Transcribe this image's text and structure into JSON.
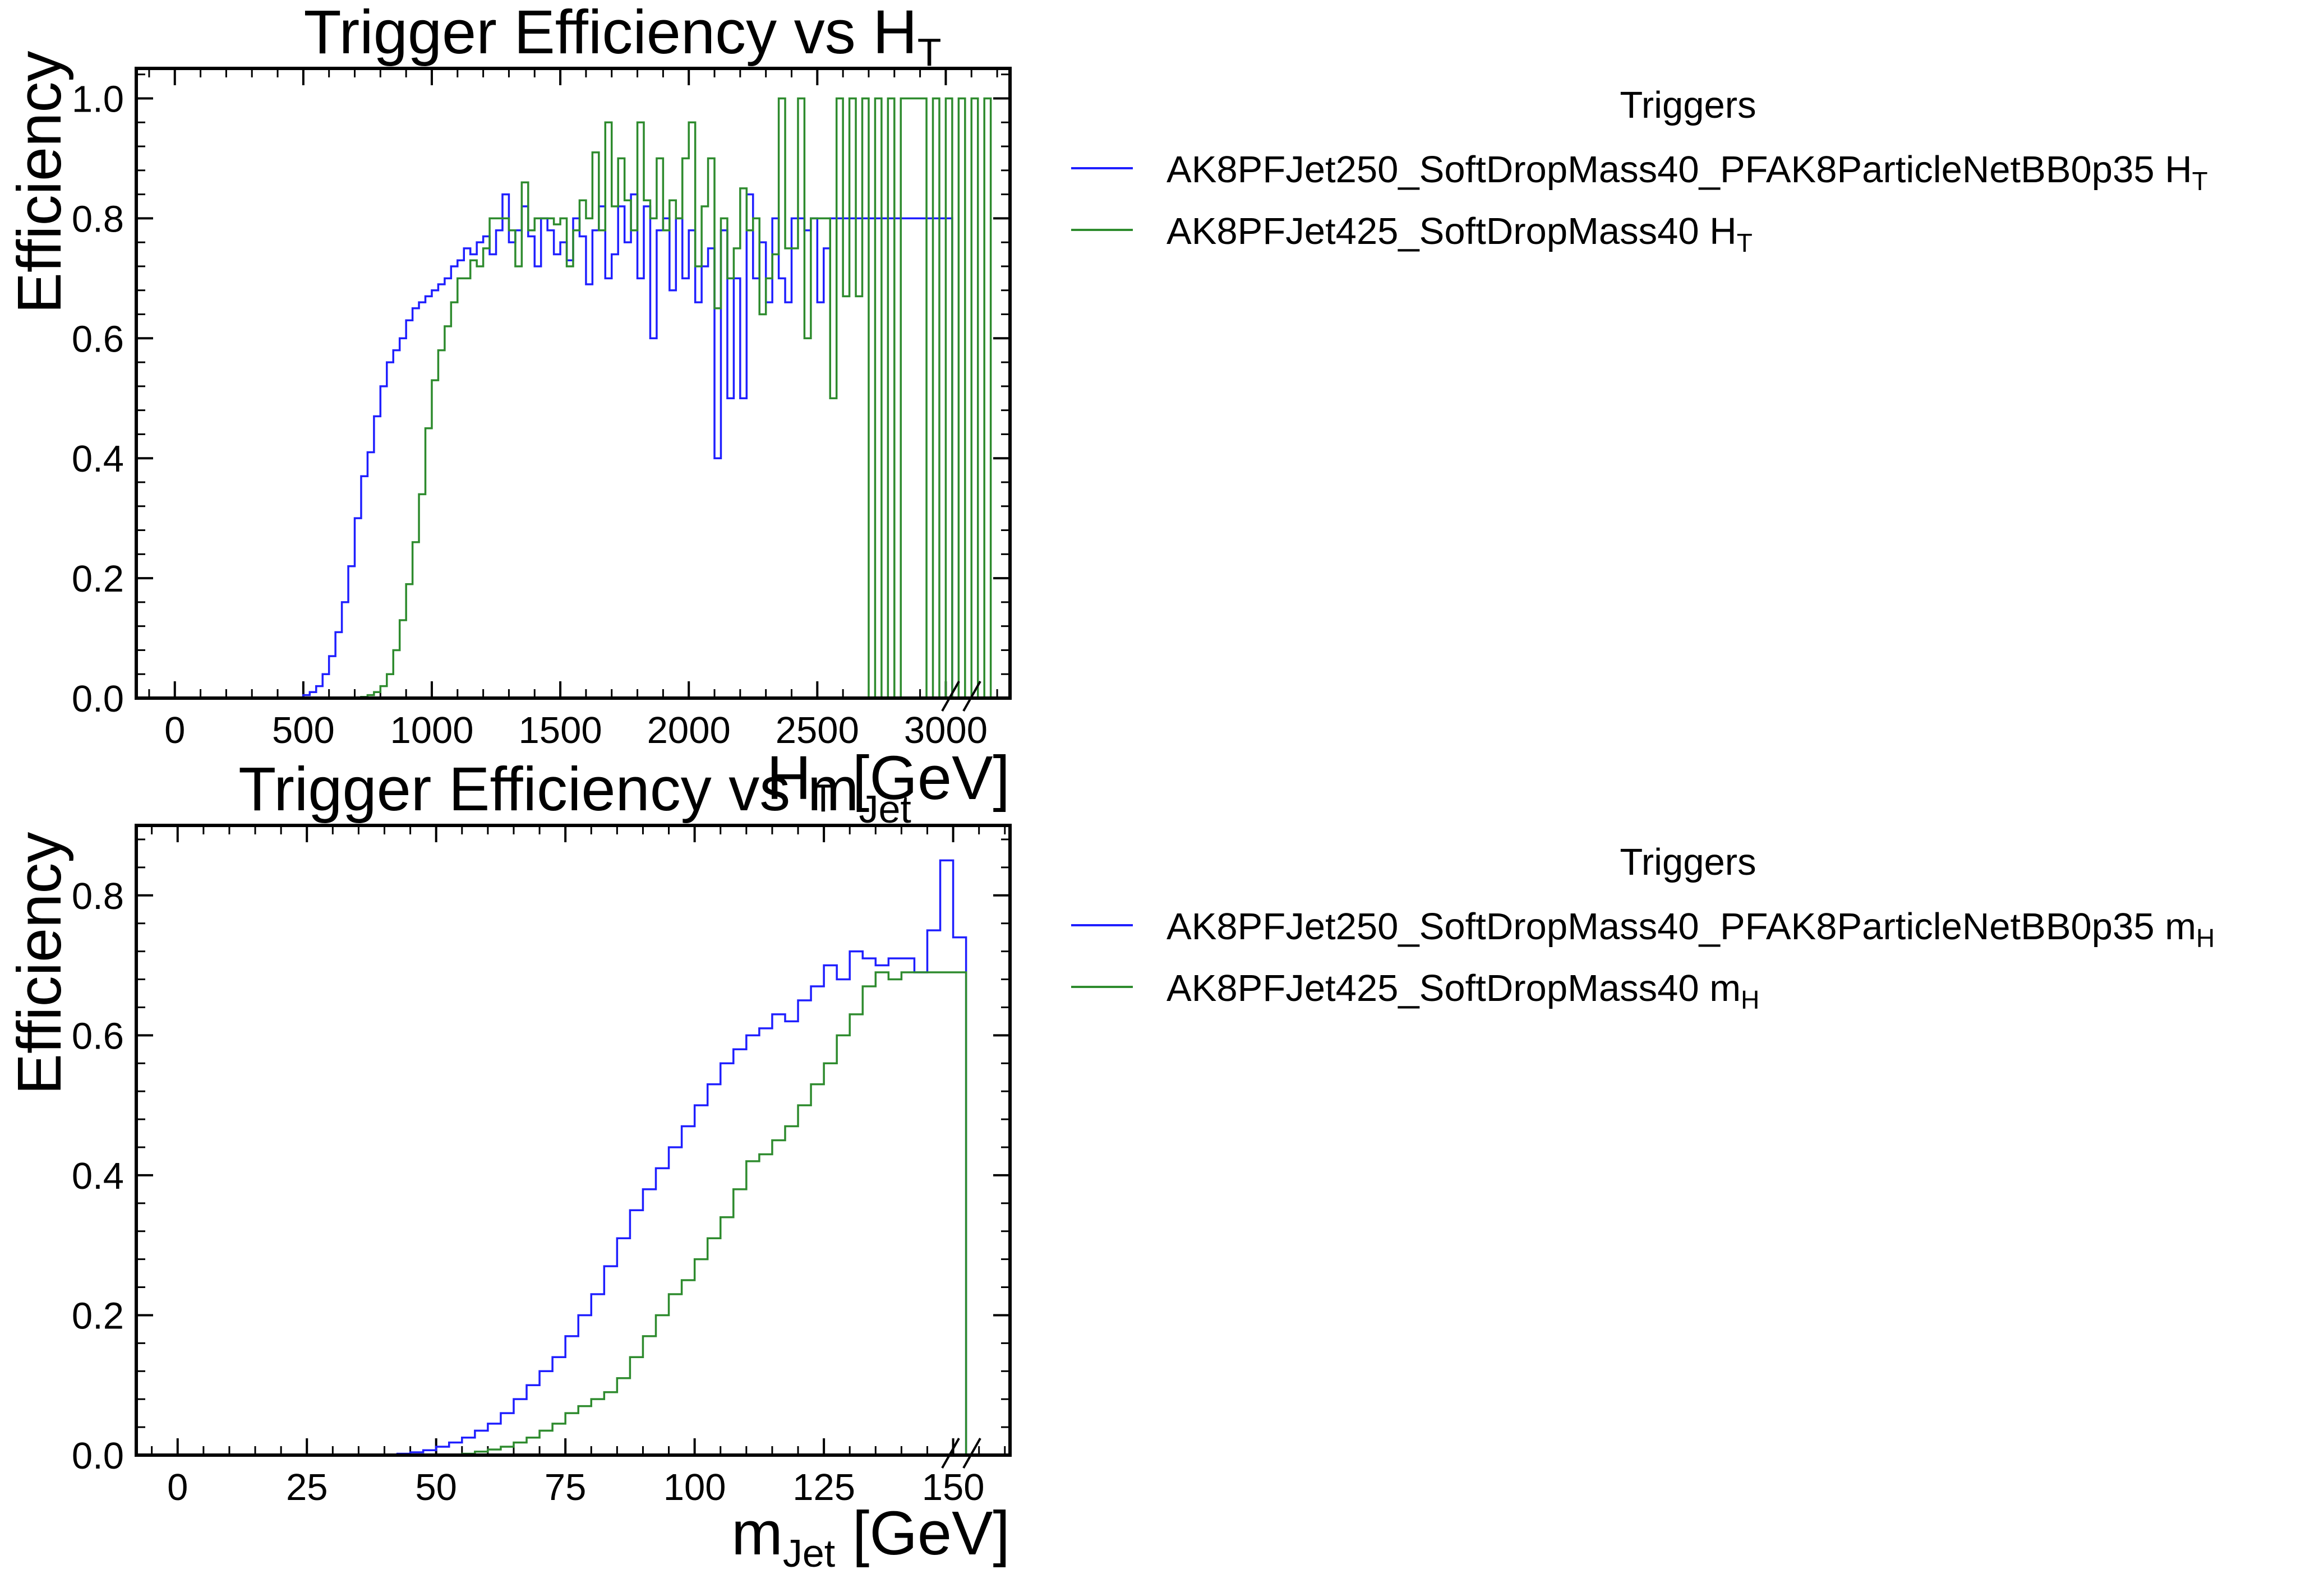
{
  "figure": {
    "legend_title": "Triggers"
  },
  "colors": {
    "series_1": "#1f1fff",
    "series_2": "#2e8b2e"
  },
  "chart_data": [
    {
      "type": "line",
      "drawstyle": "step",
      "title": "Trigger Efficiency vs H",
      "title_sub": "T",
      "xlabel": "H",
      "xlabel_sub": "T",
      "xlabel_unit": " [GeV]",
      "ylabel": "Efficiency",
      "xlim": [
        -150,
        3250
      ],
      "ylim": [
        0,
        1.05
      ],
      "xticks": [
        0,
        500,
        1000,
        1500,
        2000,
        2500,
        3000
      ],
      "xtick_labels": [
        "0",
        "500",
        "1000",
        "1500",
        "2000",
        "2500",
        "3000"
      ],
      "yticks": [
        0,
        0.2,
        0.4,
        0.6,
        0.8,
        1.0
      ],
      "ytick_labels": [
        "0.0",
        "0.2",
        "0.4",
        "0.6",
        "0.8",
        "1.0"
      ],
      "axis_break": "x-axis, right end",
      "legend_placement": "outside right",
      "x_edges_start": 0,
      "bin_width": 25,
      "series": [
        {
          "name": "AK8PFJet250_SoftDropMass40_PFAK8ParticleNetBB0p35 H",
          "name_sub": "T",
          "values": [
            0,
            0,
            0,
            0,
            0,
            0,
            0,
            0,
            0,
            0,
            0,
            0,
            0,
            0,
            0,
            0,
            0,
            0,
            0,
            0,
            0.005,
            0.01,
            0.02,
            0.04,
            0.07,
            0.11,
            0.16,
            0.22,
            0.3,
            0.37,
            0.41,
            0.47,
            0.52,
            0.56,
            0.58,
            0.6,
            0.63,
            0.65,
            0.66,
            0.67,
            0.68,
            0.69,
            0.7,
            0.72,
            0.73,
            0.75,
            0.74,
            0.76,
            0.77,
            0.74,
            0.78,
            0.84,
            0.76,
            0.78,
            0.82,
            0.77,
            0.72,
            0.8,
            0.78,
            0.74,
            0.76,
            0.73,
            0.8,
            0.77,
            0.69,
            0.78,
            0.82,
            0.7,
            0.74,
            0.82,
            0.76,
            0.84,
            0.7,
            0.82,
            0.6,
            0.78,
            0.8,
            0.68,
            0.8,
            0.7,
            0.78,
            0.66,
            0.72,
            0.75,
            0.4,
            0.78,
            0.5,
            0.7,
            0.5,
            0.84,
            0.7,
            0.76,
            0.66,
            0.8,
            0.7,
            0.66,
            0.8,
            0.8,
            0.78,
            0.8,
            0.66,
            0.75,
            0.8,
            0.8,
            0.8,
            0.8,
            0.8,
            0.8,
            0.8,
            0.8,
            0.8,
            0.8,
            0.8,
            0.8,
            0.8,
            0.8,
            0.8,
            0.8,
            0.8,
            0.8,
            0.8
          ],
          "values_note": "ignore"
        },
        {
          "name": "AK8PFJet425_SoftDropMass40 H",
          "name_sub": "T",
          "values": [
            0,
            0,
            0,
            0,
            0,
            0,
            0,
            0,
            0,
            0,
            0,
            0,
            0,
            0,
            0,
            0,
            0,
            0,
            0,
            0,
            0,
            0,
            0,
            0,
            0,
            0,
            0,
            0,
            0,
            0.002,
            0.005,
            0.01,
            0.02,
            0.04,
            0.08,
            0.13,
            0.19,
            0.26,
            0.34,
            0.45,
            0.53,
            0.58,
            0.62,
            0.66,
            0.7,
            0.7,
            0.73,
            0.72,
            0.75,
            0.8,
            0.8,
            0.8,
            0.78,
            0.72,
            0.86,
            0.78,
            0.8,
            0.8,
            0.8,
            0.79,
            0.8,
            0.72,
            0.78,
            0.83,
            0.8,
            0.91,
            0.78,
            0.96,
            0.82,
            0.9,
            0.83,
            0.78,
            0.96,
            0.83,
            0.8,
            0.9,
            0.78,
            0.83,
            0.8,
            0.9,
            0.96,
            0.72,
            0.82,
            0.9,
            0.65,
            0.8,
            0.7,
            0.75,
            0.85,
            0.78,
            0.8,
            0.64,
            0.7,
            0.74,
            1.0,
            0.75,
            0.75,
            1.0,
            0.6,
            0.8,
            0.8,
            0.8,
            0.5,
            1.0,
            0.67,
            1.0,
            0.67,
            1.0,
            0,
            1.0,
            0,
            1.0,
            0,
            1.0,
            1.0,
            1.0,
            1.0,
            0,
            1.0,
            0,
            1.0,
            0,
            1.0,
            0,
            1.0,
            0,
            1.0
          ],
          "values_note": "ignore"
        }
      ]
    },
    {
      "type": "line",
      "drawstyle": "step",
      "title": "Trigger Efficiency vs m",
      "title_sub": "Jet",
      "xlabel": "m",
      "xlabel_sub": "Jet",
      "xlabel_unit": " [GeV]",
      "ylabel": "Efficiency",
      "xlim": [
        -8,
        161
      ],
      "ylim": [
        0,
        0.9
      ],
      "xticks": [
        0,
        25,
        50,
        75,
        100,
        125,
        150
      ],
      "xtick_labels": [
        "0",
        "25",
        "50",
        "75",
        "100",
        "125",
        "150"
      ],
      "yticks": [
        0,
        0.2,
        0.4,
        0.6,
        0.8
      ],
      "ytick_labels": [
        "0.0",
        "0.2",
        "0.4",
        "0.6",
        "0.8"
      ],
      "axis_break": "x-axis, right end",
      "legend_placement": "outside right",
      "x_edges_start": 0,
      "bin_width": 2.5,
      "series": [
        {
          "name": "AK8PFJet250_SoftDropMass40_PFAK8ParticleNetBB0p35 m",
          "name_sub": "H",
          "values": [
            0,
            0,
            0,
            0,
            0,
            0,
            0,
            0,
            0,
            0,
            0,
            0,
            0,
            0,
            0,
            0,
            0,
            0.002,
            0.004,
            0.007,
            0.012,
            0.018,
            0.025,
            0.035,
            0.045,
            0.06,
            0.08,
            0.1,
            0.12,
            0.14,
            0.17,
            0.2,
            0.23,
            0.27,
            0.31,
            0.35,
            0.38,
            0.41,
            0.44,
            0.47,
            0.5,
            0.53,
            0.56,
            0.58,
            0.6,
            0.61,
            0.63,
            0.62,
            0.65,
            0.67,
            0.7,
            0.68,
            0.72,
            0.71,
            0.7,
            0.71,
            0.71,
            0.69,
            0.75,
            0.85,
            0.74
          ],
          "values_note": "ignore"
        },
        {
          "name": "AK8PFJet425_SoftDropMass40 m",
          "name_sub": "H",
          "values": [
            0,
            0,
            0,
            0,
            0,
            0,
            0,
            0,
            0,
            0,
            0,
            0,
            0,
            0,
            0,
            0,
            0,
            0,
            0,
            0,
            0,
            0,
            0.002,
            0.005,
            0.008,
            0.012,
            0.018,
            0.025,
            0.035,
            0.045,
            0.06,
            0.07,
            0.08,
            0.09,
            0.11,
            0.14,
            0.17,
            0.2,
            0.23,
            0.25,
            0.28,
            0.31,
            0.34,
            0.38,
            0.42,
            0.43,
            0.45,
            0.47,
            0.5,
            0.53,
            0.56,
            0.6,
            0.63,
            0.67,
            0.69,
            0.68,
            0.69,
            0.69,
            0.69,
            0.69,
            0.69
          ],
          "values_note": "ignore"
        }
      ]
    }
  ]
}
